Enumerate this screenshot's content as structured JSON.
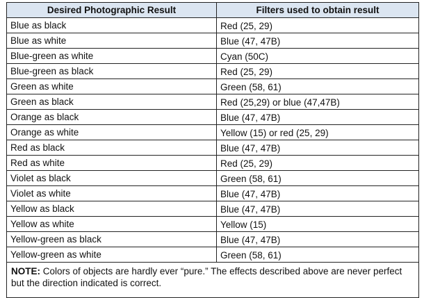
{
  "table": {
    "header": [
      "Desired Photographic Result",
      "Filters used to obtain result"
    ],
    "rows": [
      [
        "Blue as black",
        "Red (25, 29)"
      ],
      [
        "Blue as white",
        "Blue (47, 47B)"
      ],
      [
        "Blue-green as white",
        "Cyan (50C)"
      ],
      [
        "Blue-green as black",
        "Red (25, 29)"
      ],
      [
        "Green as white",
        "Green (58, 61)"
      ],
      [
        "Green as black",
        "Red (25,29) or blue (47,47B)"
      ],
      [
        "Orange as black",
        "Blue (47, 47B)"
      ],
      [
        "Orange as white",
        "Yellow (15) or red (25, 29)"
      ],
      [
        "Red as black",
        "Blue (47, 47B)"
      ],
      [
        "Red as white",
        "Red (25, 29)"
      ],
      [
        "Violet as black",
        "Green (58, 61)"
      ],
      [
        "Violet as white",
        "Blue (47, 47B)"
      ],
      [
        "Yellow as black",
        "Blue (47, 47B)"
      ],
      [
        "Yellow as white",
        "Yellow (15)"
      ],
      [
        "Yellow-green as black",
        "Blue (47, 47B)"
      ],
      [
        "Yellow-green as white",
        "Green (58, 61)"
      ]
    ],
    "note": {
      "label": "NOTE:",
      "text": "Colors of objects are hardly ever “pure.” The effects described above are never perfect but the direction indicated is correct."
    }
  }
}
